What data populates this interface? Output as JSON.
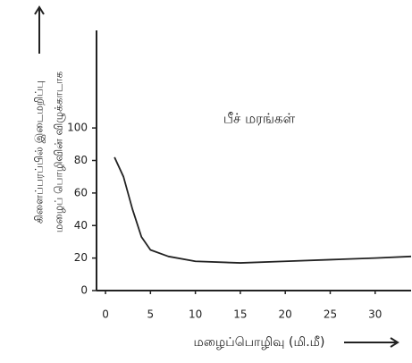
{
  "chart_data": {
    "type": "line",
    "title": "பீச் மரங்கள்",
    "x_label": "மழைப்பொழிவு (மி.மீ)",
    "y_label": [
      "கிளைப்பரப்பில் இடைமறிப்பு",
      "மழைப் பொழிவின் விழுக்காடாக"
    ],
    "x": [
      1,
      2,
      3,
      4,
      5,
      7,
      10,
      15,
      20,
      25,
      30,
      34
    ],
    "series": [
      {
        "name": "பீச் மரங்கள்",
        "color": "#222222",
        "values": [
          82,
          70,
          50,
          33,
          25,
          21,
          18,
          17,
          18,
          19,
          20,
          21
        ]
      }
    ],
    "xlim": [
      -1,
      34
    ],
    "ylim": [
      0,
      160
    ],
    "xticks": [
      0,
      5,
      10,
      15,
      20,
      25,
      30
    ],
    "yticks": [
      0,
      20,
      40,
      60,
      80,
      100
    ],
    "grid": false
  }
}
